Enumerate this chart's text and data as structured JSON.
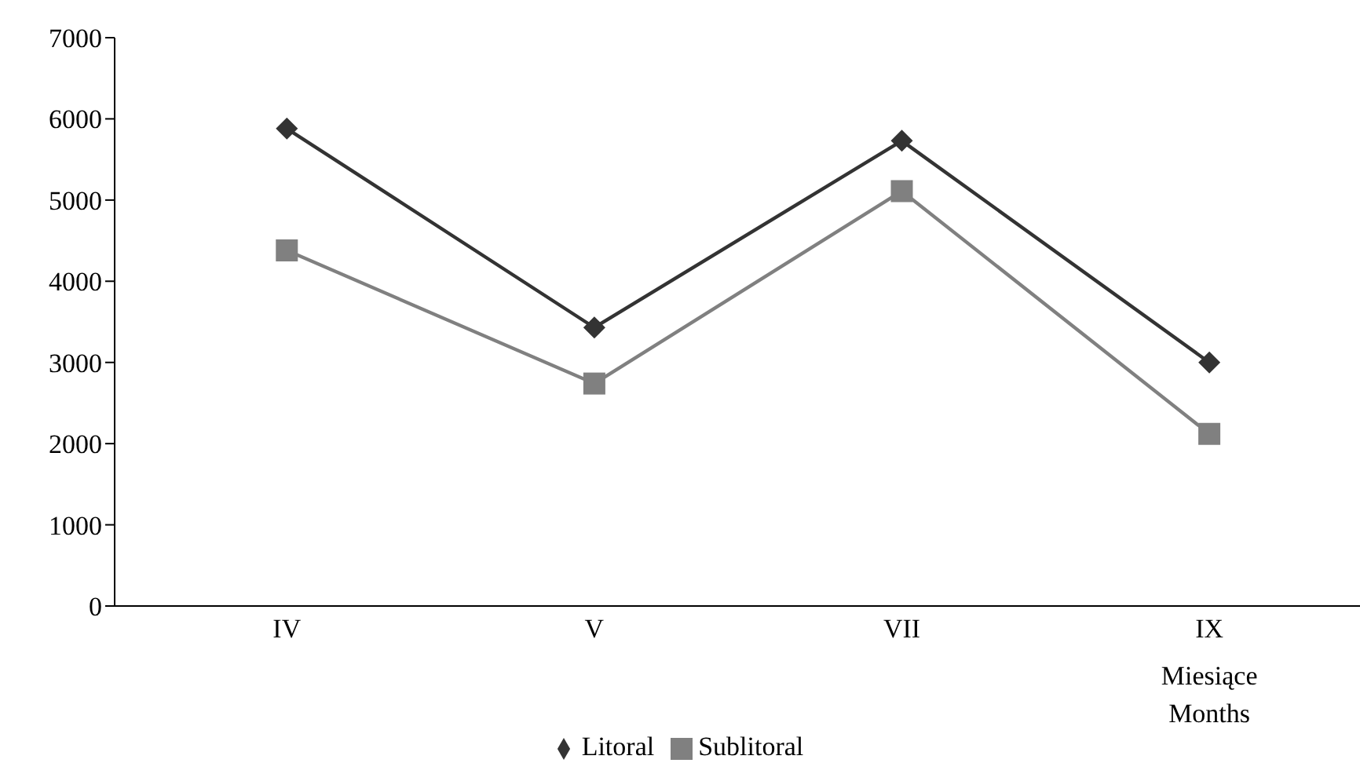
{
  "chart_data": {
    "type": "line",
    "xlabel": "Miesiące\nMonths",
    "categories": [
      "IV",
      "V",
      "VII",
      "IX"
    ],
    "series": [
      {
        "name": "Litoral",
        "color": "#333333",
        "marker": "diamond",
        "values": [
          5880,
          3430,
          5730,
          3000
        ]
      },
      {
        "name": "Sublitoral",
        "color": "#808080",
        "marker": "square",
        "values": [
          4380,
          2740,
          5110,
          2120
        ]
      }
    ],
    "ylim": [
      0,
      7000
    ],
    "yticks": [
      0,
      1000,
      2000,
      3000,
      4000,
      5000,
      6000,
      7000
    ],
    "legend": "bottom"
  }
}
